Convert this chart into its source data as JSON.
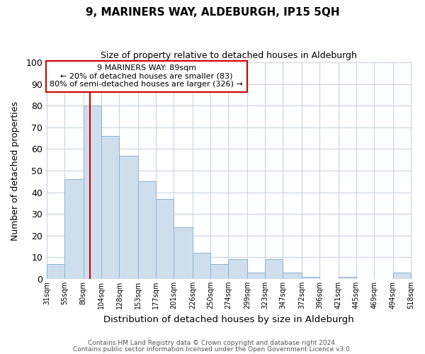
{
  "title": "9, MARINERS WAY, ALDEBURGH, IP15 5QH",
  "subtitle": "Size of property relative to detached houses in Aldeburgh",
  "xlabel": "Distribution of detached houses by size in Aldeburgh",
  "ylabel": "Number of detached properties",
  "bar_left_edges": [
    31,
    55,
    80,
    104,
    128,
    153,
    177,
    201,
    226,
    250,
    274,
    299,
    323,
    347,
    372,
    396,
    421,
    445,
    469,
    494
  ],
  "bar_heights": [
    7,
    46,
    80,
    66,
    57,
    45,
    37,
    24,
    12,
    7,
    9,
    3,
    9,
    3,
    1,
    0,
    1,
    0,
    0,
    3
  ],
  "bin_widths": [
    24,
    25,
    24,
    24,
    25,
    24,
    24,
    25,
    24,
    24,
    25,
    24,
    24,
    25,
    24,
    25,
    24,
    24,
    25,
    24
  ],
  "tick_labels": [
    "31sqm",
    "55sqm",
    "80sqm",
    "104sqm",
    "128sqm",
    "153sqm",
    "177sqm",
    "201sqm",
    "226sqm",
    "250sqm",
    "274sqm",
    "299sqm",
    "323sqm",
    "347sqm",
    "372sqm",
    "396sqm",
    "421sqm",
    "445sqm",
    "469sqm",
    "494sqm",
    "518sqm"
  ],
  "bar_color": "#cfdeed",
  "bar_edge_color": "#8ab4d4",
  "vline_x": 89,
  "vline_color": "#cc0000",
  "ylim": [
    0,
    100
  ],
  "yticks": [
    0,
    10,
    20,
    30,
    40,
    50,
    60,
    70,
    80,
    90,
    100
  ],
  "annotation_title": "9 MARINERS WAY: 89sqm",
  "annotation_line1": "← 20% of detached houses are smaller (83)",
  "annotation_line2": "80% of semi-detached houses are larger (326) →",
  "footnote1": "Contains HM Land Registry data © Crown copyright and database right 2024.",
  "footnote2": "Contains public sector information licensed under the Open Government Licence v3.0.",
  "background_color": "#ffffff",
  "grid_color": "#c8d4e0",
  "box_color": "#cc0000",
  "xlim_left": 30,
  "xlim_right": 519
}
